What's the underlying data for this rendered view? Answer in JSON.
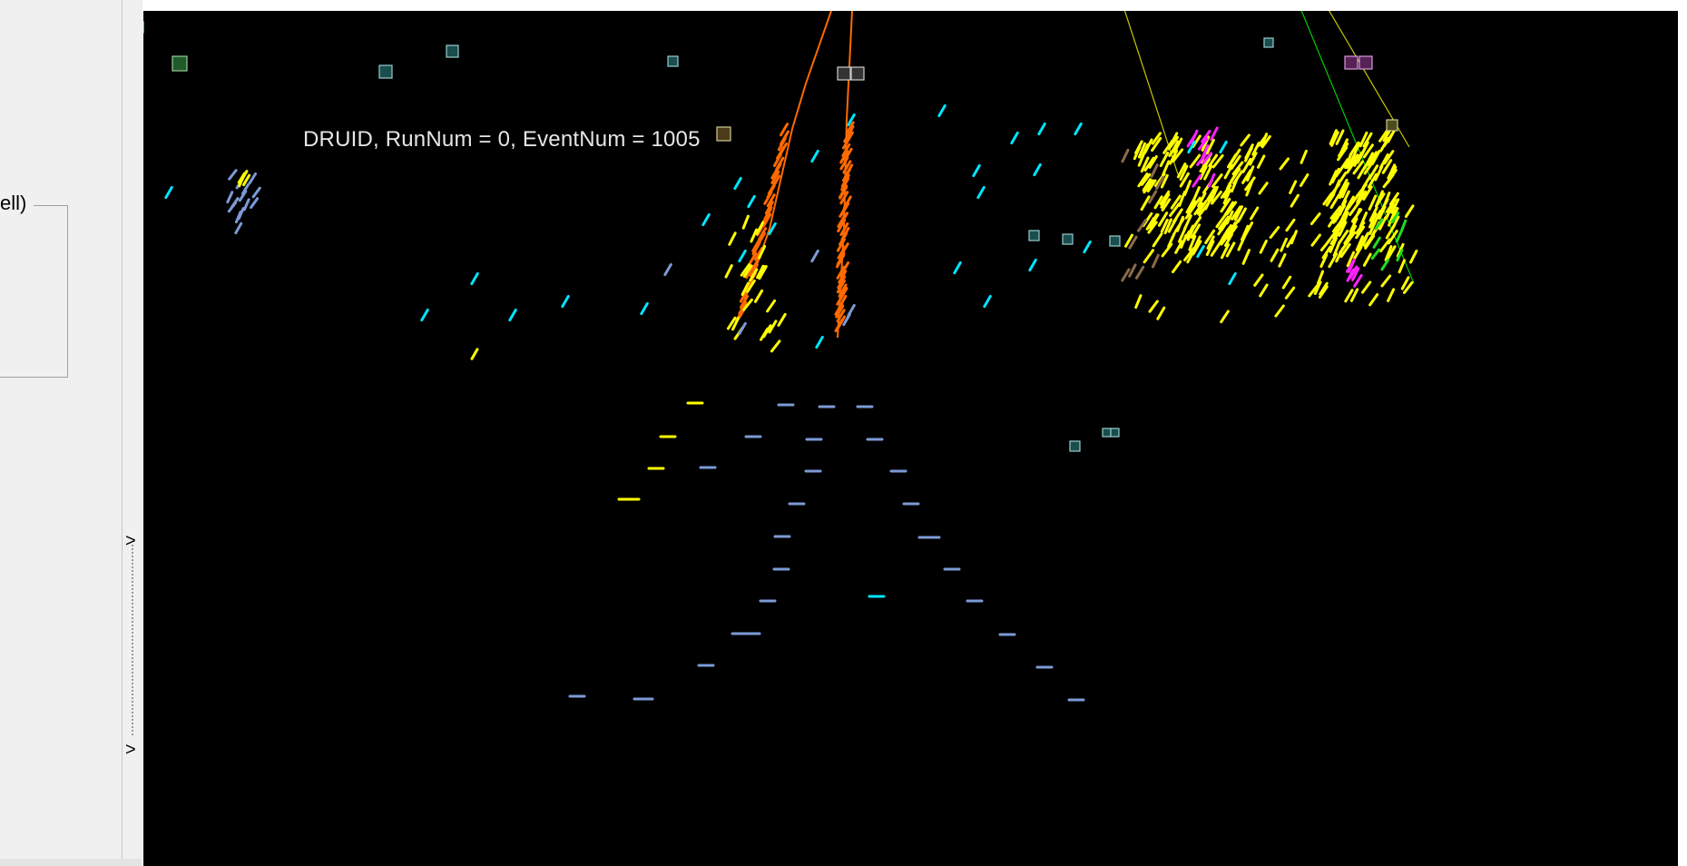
{
  "side_panel": {
    "group_title": "ell)",
    "collapse_arrows": [
      ">",
      ">"
    ]
  },
  "viewport": {
    "event_label": "DRUID, RunNum = 0, EventNum = 1005"
  },
  "colors": {
    "background": "#000000",
    "track_orange": "#ff6a00",
    "hit_yellow": "#ffff00",
    "hit_cyan": "#00e5ff",
    "hit_steelblue": "#7d9ad6",
    "hit_magenta": "#ff22ff",
    "hit_green": "#22dd22",
    "hit_brown": "#8b6a4a",
    "line_yellow": "#c8c800",
    "line_green": "#00cc00",
    "marker_teal": "#1a4d4d",
    "marker_gray": "#cfcfcf"
  }
}
